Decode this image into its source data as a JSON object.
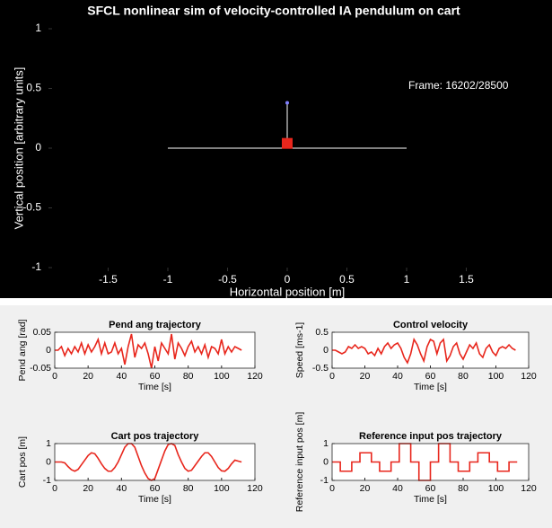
{
  "chart_data": [
    {
      "type": "pendulum",
      "title": "SFCL nonlinear sim of velocity-controlled IA pendulum on cart",
      "xlabel": "Horizontal position [m]",
      "ylabel": "Vertical position [arbitrary units]",
      "annotation": "Frame: 16202/28500",
      "xlim": [
        -2,
        2
      ],
      "ylim": [
        -1.03,
        1.03
      ],
      "xticks": [
        -1.5,
        -1,
        -0.5,
        0,
        0.5,
        1,
        1.5
      ],
      "yticks": [
        -1,
        -0.5,
        0,
        0.5,
        1
      ],
      "background": "#000000",
      "text_color": "#ffffff",
      "track": {
        "x": [
          -1,
          1
        ],
        "y": [
          0,
          0
        ],
        "color": "#ffffff"
      },
      "cart": {
        "x": 0,
        "y": 0.04,
        "color": "#e8261c"
      },
      "bob": {
        "x": 0,
        "y": 0.38,
        "color": "#8080ff"
      }
    },
    {
      "type": "line",
      "title": "Pend ang trajectory",
      "xlabel": "Time [s]",
      "ylabel": "Pend ang [rad]",
      "xlim": [
        0,
        120
      ],
      "ylim": [
        -0.05,
        0.05
      ],
      "xticks": [
        0,
        20,
        40,
        60,
        80,
        100,
        120
      ],
      "yticks": [
        -0.05,
        0,
        0.05
      ],
      "color": "#e8261c",
      "x": [
        0,
        2,
        4,
        6,
        8,
        10,
        12,
        14,
        16,
        18,
        20,
        22,
        24,
        26,
        28,
        30,
        32,
        34,
        36,
        38,
        40,
        42,
        44,
        46,
        48,
        50,
        52,
        54,
        56,
        58,
        60,
        62,
        64,
        66,
        68,
        70,
        72,
        74,
        76,
        78,
        80,
        82,
        84,
        86,
        88,
        90,
        92,
        94,
        96,
        98,
        100,
        102,
        104,
        106,
        108,
        110,
        112
      ],
      "values": [
        0,
        0,
        0.01,
        -0.015,
        0.005,
        -0.01,
        0.01,
        -0.005,
        0.02,
        -0.01,
        0.015,
        -0.005,
        0.01,
        0.03,
        -0.01,
        0.02,
        -0.01,
        -0.005,
        0.02,
        -0.01,
        0.005,
        -0.04,
        0.01,
        0.045,
        -0.02,
        0.015,
        0.005,
        0.02,
        -0.01,
        -0.05,
        0.01,
        -0.03,
        0.02,
        0.005,
        -0.01,
        0.045,
        -0.025,
        0.02,
        0.005,
        -0.015,
        0.01,
        0.025,
        -0.005,
        0.01,
        -0.01,
        0.015,
        -0.02,
        0.01,
        0.005,
        -0.01,
        0.03,
        -0.01,
        0.01,
        -0.005,
        0.01,
        0.005,
        0
      ]
    },
    {
      "type": "line",
      "title": "Control velocity",
      "xlabel": "Time [s]",
      "ylabel": "Speed [ms-1]",
      "xlim": [
        0,
        120
      ],
      "ylim": [
        -0.5,
        0.5
      ],
      "xticks": [
        0,
        20,
        40,
        60,
        80,
        100,
        120
      ],
      "yticks": [
        -0.5,
        0,
        0.5
      ],
      "color": "#e8261c",
      "x": [
        0,
        2,
        4,
        6,
        8,
        10,
        12,
        14,
        16,
        18,
        20,
        22,
        24,
        26,
        28,
        30,
        32,
        34,
        36,
        38,
        40,
        42,
        44,
        46,
        48,
        50,
        52,
        54,
        56,
        58,
        60,
        62,
        64,
        66,
        68,
        70,
        72,
        74,
        76,
        78,
        80,
        82,
        84,
        86,
        88,
        90,
        92,
        94,
        96,
        98,
        100,
        102,
        104,
        106,
        108,
        110,
        112
      ],
      "values": [
        0,
        0,
        -0.05,
        -0.1,
        -0.05,
        0.1,
        0.05,
        0.15,
        0.05,
        0.1,
        0.05,
        -0.1,
        -0.05,
        -0.15,
        0.05,
        -0.1,
        0.1,
        0.2,
        0.05,
        0.15,
        0.2,
        0.05,
        -0.2,
        -0.35,
        -0.1,
        0.3,
        0.15,
        -0.1,
        -0.3,
        0.1,
        0.3,
        0.25,
        -0.1,
        0.2,
        0.3,
        -0.3,
        -0.15,
        0.1,
        0.2,
        -0.1,
        -0.25,
        -0.05,
        0.15,
        0.05,
        0.2,
        -0.1,
        -0.2,
        0.05,
        0.15,
        -0.05,
        -0.15,
        0.05,
        0.1,
        0.05,
        0.15,
        0.05,
        0
      ]
    },
    {
      "type": "line",
      "title": "Cart pos trajectory",
      "xlabel": "Time [s]",
      "ylabel": "Cart pos [m]",
      "xlim": [
        0,
        120
      ],
      "ylim": [
        -1,
        1
      ],
      "xticks": [
        0,
        20,
        40,
        60,
        80,
        100,
        120
      ],
      "yticks": [
        -1,
        0,
        1
      ],
      "color": "#e8261c",
      "x": [
        0,
        2,
        4,
        6,
        8,
        10,
        12,
        14,
        16,
        18,
        20,
        22,
        24,
        26,
        28,
        30,
        32,
        34,
        36,
        38,
        40,
        42,
        44,
        46,
        48,
        50,
        52,
        54,
        56,
        58,
        60,
        62,
        64,
        66,
        68,
        70,
        72,
        74,
        76,
        78,
        80,
        82,
        84,
        86,
        88,
        90,
        92,
        94,
        96,
        98,
        100,
        102,
        104,
        106,
        108,
        110,
        112
      ],
      "values": [
        0,
        0,
        0,
        -0.05,
        -0.25,
        -0.42,
        -0.5,
        -0.4,
        -0.15,
        0.1,
        0.35,
        0.5,
        0.45,
        0.2,
        -0.1,
        -0.35,
        -0.5,
        -0.5,
        -0.3,
        0,
        0.4,
        0.8,
        1,
        1,
        0.8,
        0.3,
        -0.2,
        -0.6,
        -0.9,
        -1,
        -0.9,
        -0.4,
        0.1,
        0.6,
        0.95,
        1,
        0.9,
        0.4,
        0,
        -0.35,
        -0.5,
        -0.45,
        -0.2,
        0.05,
        0.3,
        0.5,
        0.5,
        0.3,
        0,
        -0.3,
        -0.48,
        -0.5,
        -0.35,
        -0.1,
        0.1,
        0.05,
        0
      ]
    },
    {
      "type": "line",
      "title": "Reference input pos trajectory",
      "xlabel": "Time [s]",
      "ylabel": "Reference input pos [m]",
      "xlim": [
        0,
        120
      ],
      "ylim": [
        -1,
        1
      ],
      "xticks": [
        0,
        20,
        40,
        60,
        80,
        100,
        120
      ],
      "yticks": [
        -1,
        0,
        1
      ],
      "color": "#e8261c",
      "x": [
        0,
        5,
        5,
        12,
        12,
        17,
        17,
        24,
        24,
        29,
        29,
        36,
        36,
        41,
        41,
        48,
        48,
        53,
        53,
        60,
        60,
        65,
        65,
        72,
        72,
        77,
        77,
        84,
        84,
        89,
        89,
        96,
        96,
        101,
        101,
        108,
        108,
        113
      ],
      "values": [
        0,
        0,
        -0.5,
        -0.5,
        0,
        0,
        0.5,
        0.5,
        0,
        0,
        -0.5,
        -0.5,
        0,
        0,
        1,
        1,
        0,
        0,
        -1,
        -1,
        0,
        0,
        1,
        1,
        0,
        0,
        -0.5,
        -0.5,
        0,
        0,
        0.5,
        0.5,
        0,
        0,
        -0.5,
        -0.5,
        0,
        0
      ]
    }
  ]
}
